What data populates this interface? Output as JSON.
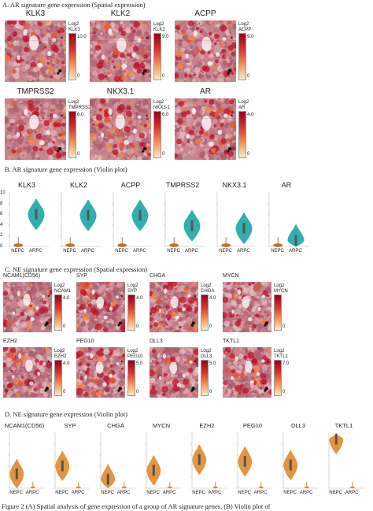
{
  "sections": {
    "a": "A.  AR signature gene expression (Spatial expression)",
    "b": "B.  AR signature gene expression (Violin plot)",
    "c": "C.  NE signature gene expression (Spatial expression)",
    "d": "D.  NE signature gene expression (Violin plot)"
  },
  "spatial_ar": [
    {
      "gene": "KLK3",
      "legend": [
        "Log2",
        "KLK3"
      ],
      "max": "10.0",
      "min": "0"
    },
    {
      "gene": "KLK2",
      "legend": [
        "Log2",
        "KLK2"
      ],
      "max": "9.0",
      "min": "0"
    },
    {
      "gene": "ACPP",
      "legend": [
        "Log2",
        "ACPP"
      ],
      "max": "9.0",
      "min": "0"
    },
    {
      "gene": "TMPRSS2",
      "legend": [
        "Log2",
        "TMPRSS2"
      ],
      "max": "6.0",
      "min": "0"
    },
    {
      "gene": "NKX3.1",
      "legend": [
        "Log2",
        "NKX3-1"
      ],
      "max": "6.0",
      "min": "0"
    },
    {
      "gene": "AR",
      "legend": [
        "Log2",
        "AR"
      ],
      "max": "4.0",
      "min": "0"
    }
  ],
  "violin_ar": {
    "groups": [
      "NEPC",
      "ARPC"
    ],
    "y_ticks_first": [
      "10",
      "8",
      "6",
      "4",
      "2",
      "0"
    ],
    "panels": [
      {
        "gene": "KLK3"
      },
      {
        "gene": "KLK2"
      },
      {
        "gene": "ACPP"
      },
      {
        "gene": "TMPRSS2"
      },
      {
        "gene": "NKX3.1"
      },
      {
        "gene": "AR"
      }
    ]
  },
  "spatial_ne": [
    {
      "gene": "NCAM1(CD56)",
      "legend": [
        "Log2",
        "NCAM1"
      ],
      "max": "4.0",
      "min": "0"
    },
    {
      "gene": "SYP",
      "legend": [
        "Log2",
        "SYP"
      ],
      "max": "4.0",
      "min": "0"
    },
    {
      "gene": "CHGA",
      "legend": [
        "Log2",
        "CHGA"
      ],
      "max": "4.0",
      "min": "0"
    },
    {
      "gene": "MYCN",
      "legend": [
        "Log2",
        "MYCN"
      ],
      "max": "",
      "min": "0"
    },
    {
      "gene": "EZH2",
      "legend": [
        "Log2",
        "EZH2"
      ],
      "max": "4.0",
      "min": "0"
    },
    {
      "gene": "PEG10",
      "legend": [
        "Log2",
        "PEG10"
      ],
      "max": "5.0",
      "min": "0"
    },
    {
      "gene": "DLL3",
      "legend": [
        "Log2",
        "DLL3"
      ],
      "max": "5.0",
      "min": "0"
    },
    {
      "gene": "TKTL1",
      "legend": [
        "Log2",
        "TKTL1"
      ],
      "max": "7.0",
      "min": "0"
    }
  ],
  "violin_ne": {
    "groups": [
      "NEPC",
      "ARPC"
    ],
    "panels": [
      {
        "gene": "NCAM1(CD56)"
      },
      {
        "gene": "SYP"
      },
      {
        "gene": "CHGA"
      },
      {
        "gene": "MYCN"
      },
      {
        "gene": "EZH2"
      },
      {
        "gene": "PEG10"
      },
      {
        "gene": "DLL3"
      },
      {
        "gene": "TKTL1"
      }
    ]
  },
  "caption": "Figure 2 (A) Spatial analysis of gene expression of a group of AR signature genes. (B) Violin plot of",
  "colors": {
    "ar_violin": "#1aa6a8",
    "ne_violin": "#e08a2c",
    "tissue_base": "#c98a8a",
    "heat_high": "#b0001e",
    "heat_low": "#fde9c8"
  },
  "chart_data": [
    {
      "type": "violin",
      "title": "AR signature gene expression (Violin plot)",
      "categories": [
        "NEPC",
        "ARPC"
      ],
      "ylim": [
        0,
        10
      ],
      "series": [
        {
          "name": "KLK3",
          "median": [
            0.8,
            6.2
          ]
        },
        {
          "name": "KLK2",
          "median": [
            0.5,
            6.0
          ]
        },
        {
          "name": "ACPP",
          "median": [
            0.6,
            6.0
          ]
        },
        {
          "name": "TMPRSS2",
          "median": [
            0.3,
            4.0
          ]
        },
        {
          "name": "NKX3.1",
          "median": [
            0.3,
            3.5
          ]
        },
        {
          "name": "AR",
          "median": [
            0.2,
            1.2
          ]
        }
      ]
    },
    {
      "type": "violin",
      "title": "NE signature gene expression (Violin plot)",
      "categories": [
        "NEPC",
        "ARPC"
      ],
      "series": [
        {
          "name": "NCAM1(CD56)",
          "median": [
            1.6,
            0.1
          ]
        },
        {
          "name": "SYP",
          "median": [
            2.5,
            0.1
          ]
        },
        {
          "name": "CHGA",
          "median": [
            1.0,
            0.1
          ]
        },
        {
          "name": "MYCN",
          "median": [
            2.0,
            0.1
          ]
        },
        {
          "name": "EZH2",
          "median": [
            3.2,
            0.3
          ]
        },
        {
          "name": "PEG10",
          "median": [
            3.0,
            0.1
          ]
        },
        {
          "name": "DLL3",
          "median": [
            2.6,
            0.1
          ]
        },
        {
          "name": "TKTL1",
          "median": [
            5.5,
            0.1
          ]
        }
      ]
    }
  ]
}
